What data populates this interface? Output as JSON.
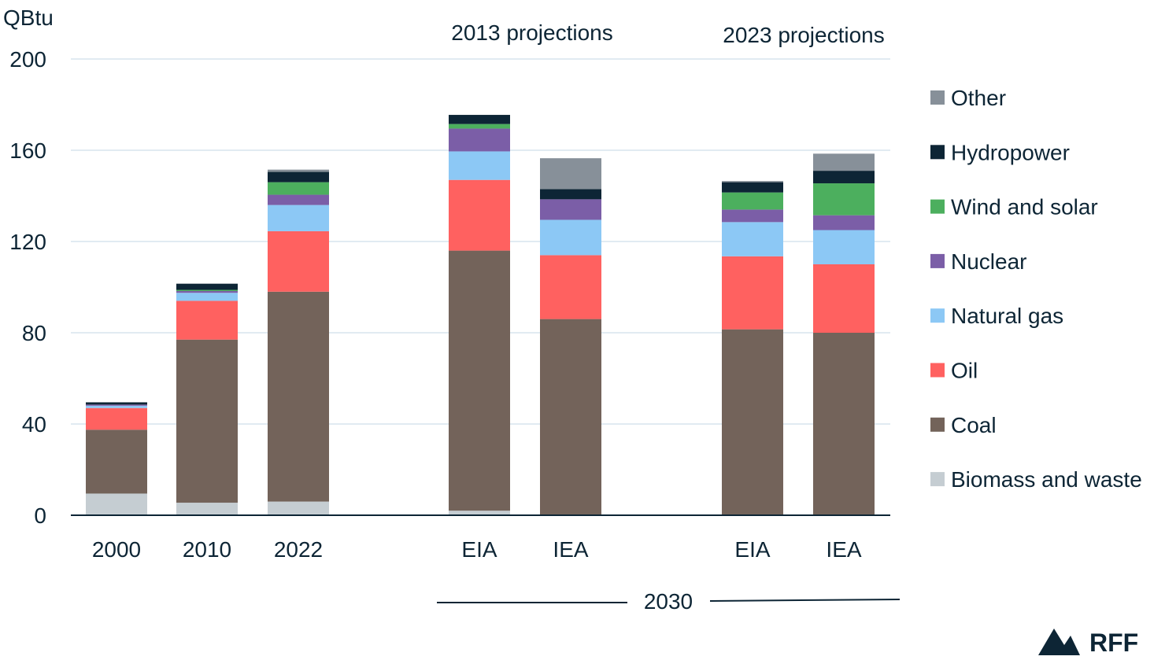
{
  "chart_data": {
    "type": "bar",
    "stacked": true,
    "ylabel": "QBtu",
    "ylim": [
      0,
      200
    ],
    "yticks": [
      0,
      40,
      80,
      120,
      160,
      200
    ],
    "grid": true,
    "legend_position": "right",
    "categories": [
      "2000",
      "2010",
      "2022",
      "EIA",
      "IEA",
      "EIA",
      "IEA"
    ],
    "group_labels": [
      "2013 projections",
      "2023 projections"
    ],
    "bracket_label": "2030",
    "series": [
      {
        "name": "Biomass and waste",
        "color": "#c5cdd2",
        "values": [
          9.5,
          5.5,
          6,
          2,
          0,
          0,
          0
        ]
      },
      {
        "name": "Coal",
        "color": "#73635a",
        "values": [
          28,
          71.5,
          92,
          114,
          86,
          81.5,
          80
        ]
      },
      {
        "name": "Oil",
        "color": "#ff6160",
        "values": [
          9.5,
          17,
          26.5,
          31,
          28,
          32,
          30
        ]
      },
      {
        "name": "Natural gas",
        "color": "#8cc8f5",
        "values": [
          1,
          3.5,
          11.5,
          12.5,
          15.5,
          15,
          15
        ]
      },
      {
        "name": "Nuclear",
        "color": "#7b5ea7",
        "values": [
          0.5,
          0.8,
          4.5,
          10,
          9,
          5.5,
          6.5
        ]
      },
      {
        "name": "Wind and solar",
        "color": "#4caf5e",
        "values": [
          0,
          0.5,
          5.5,
          2,
          0,
          7.5,
          14
        ]
      },
      {
        "name": "Hydropower",
        "color": "#0d2535",
        "values": [
          1,
          2.7,
          4.5,
          4,
          4.5,
          4.5,
          5.5
        ]
      },
      {
        "name": "Other",
        "color": "#879099",
        "values": [
          0,
          0,
          1,
          0,
          13.5,
          0.5,
          7.5
        ]
      }
    ]
  },
  "brand": {
    "name": "RFF"
  }
}
